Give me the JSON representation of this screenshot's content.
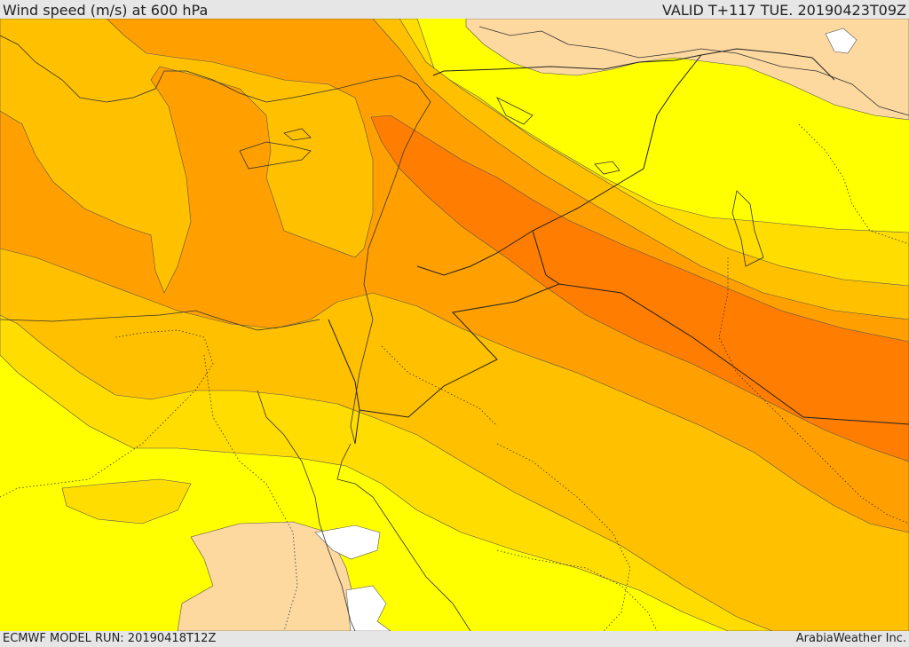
{
  "header": {
    "title": "Wind speed (m/s) at 600 hPa",
    "valid": "VALID T+117 TUE. 20190423T09Z"
  },
  "footer": {
    "model_run": "ECMWF MODEL RUN: 20190418T12Z",
    "credit": "ArabiaWeather Inc."
  },
  "colors": {
    "band_white": "#ffffff",
    "band_peach": "#fdd9a0",
    "band_yellow": "#ffff00",
    "band_yellow_orange": "#ffdd00",
    "band_light_orange": "#ffc000",
    "band_orange": "#ffa000",
    "band_dark_orange": "#ff7d00"
  }
}
